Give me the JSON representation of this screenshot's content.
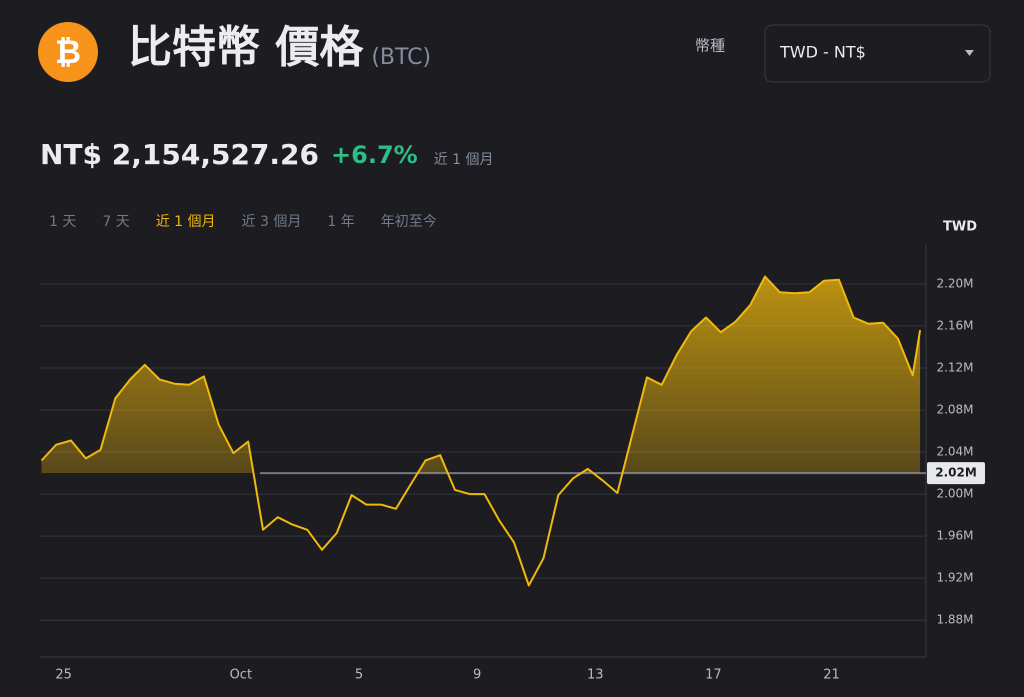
{
  "header": {
    "coin_symbol": "₿",
    "title": "比特幣 價格",
    "ticker": "(BTC)",
    "currency_label": "幣種",
    "currency_select": "TWD - NT$"
  },
  "price": {
    "value": "NT$ 2,154,527.26",
    "change": "+6.7%",
    "period": "近 1 個月"
  },
  "tabs": {
    "items": [
      "1 天",
      "7 天",
      "近 1 個月",
      "近 3 個月",
      "1 年",
      "年初至今"
    ],
    "active": 2
  },
  "chart_data": {
    "type": "area",
    "y_axis_label": "TWD",
    "color": "#f0b90b",
    "x": [
      24.25,
      24.75,
      25.25,
      25.75,
      26.25,
      26.75,
      27.25,
      27.75,
      28.25,
      28.75,
      29.25,
      29.75,
      30.25,
      30.75,
      31.25,
      31.75,
      32.25,
      32.75,
      33.25,
      33.75,
      34.25,
      34.75,
      35.25,
      35.75,
      36.25,
      36.75,
      37.25,
      37.75,
      38.25,
      38.75,
      39.25,
      39.75,
      40.25,
      40.75,
      41.25,
      41.75,
      42.25,
      42.75,
      43.25,
      43.75,
      44.25,
      44.75,
      45.25,
      45.75,
      46.25,
      46.75,
      47.25,
      47.75,
      48.25,
      48.75,
      49.25,
      49.75,
      50.25,
      50.75,
      51.25,
      51.75,
      52.25,
      52.75,
      53.25,
      53.75,
      54.0
    ],
    "values": [
      2032000,
      2047000,
      2051000,
      2034000,
      2042000,
      2091000,
      2109000,
      2123000,
      2109000,
      2105000,
      2104000,
      2112000,
      2066000,
      2039000,
      2050000,
      1966000,
      1978000,
      1971000,
      1966000,
      1947000,
      1963000,
      1999000,
      1990000,
      1990000,
      1986000,
      2009000,
      2032000,
      2037000,
      2004000,
      2000000,
      2000000,
      1975000,
      1954000,
      1913000,
      1939000,
      1999000,
      2015000,
      2024000,
      2013000,
      2001000,
      2056000,
      2111000,
      2104000,
      2132000,
      2155000,
      2168000,
      2154000,
      2164000,
      2180000,
      2207000,
      2192000,
      2191000,
      2192000,
      2203000,
      2204000,
      2168000,
      2162000,
      2163000,
      2148000,
      2113000,
      2156000
    ],
    "xlim": [
      24.2,
      54.2
    ],
    "xticks": [
      25,
      {
        "value": 31,
        "label": "Oct"
      },
      {
        "value": 35,
        "label": "5"
      },
      {
        "value": 39,
        "label": "9"
      },
      {
        "value": 43,
        "label": "13"
      },
      {
        "value": 47,
        "label": "17"
      },
      {
        "value": 51,
        "label": "21"
      }
    ],
    "ylim": [
      1845000,
      2237000
    ],
    "yticks": [
      {
        "value": 1880000,
        "label": "1.88M"
      },
      {
        "value": 1920000,
        "label": "1.92M"
      },
      {
        "value": 1960000,
        "label": "1.96M"
      },
      {
        "value": 2000000,
        "label": "2.00M"
      },
      {
        "value": 2040000,
        "label": "2.04M"
      },
      {
        "value": 2080000,
        "label": "2.08M"
      },
      {
        "value": 2120000,
        "label": "2.12M"
      },
      {
        "value": 2160000,
        "label": "2.16M"
      },
      {
        "value": 2200000,
        "label": "2.20M"
      }
    ],
    "baseline": {
      "value": 2020000,
      "label": "2.02M"
    },
    "grid": true
  }
}
